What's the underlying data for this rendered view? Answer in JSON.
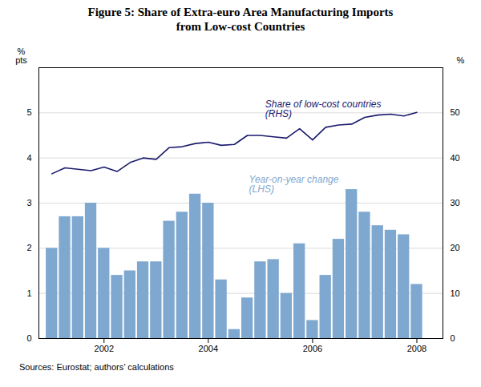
{
  "chart_data": {
    "type": "combo",
    "title": "Figure 5: Share of Extra-euro Area Manufacturing Imports\nfrom Low-cost Countries",
    "caption": "Sources:  Eurostat; authors’ calculations",
    "ylabel": "%\npts",
    "y2label": "%",
    "x": [
      2001.0,
      2001.25,
      2001.5,
      2001.75,
      2002.0,
      2002.25,
      2002.5,
      2002.75,
      2003.0,
      2003.25,
      2003.5,
      2003.75,
      2004.0,
      2004.25,
      2004.5,
      2004.75,
      2005.0,
      2005.25,
      2005.5,
      2005.75,
      2006.0,
      2006.25,
      2006.5,
      2006.75,
      2007.0,
      2007.25,
      2007.5,
      2007.75,
      2008.0
    ],
    "series": [
      {
        "name": "Year-on-year change\n(LHS)",
        "type": "bar",
        "color": "#7fa8d0",
        "values": [
          2.0,
          2.7,
          2.7,
          3.0,
          2.0,
          1.4,
          1.5,
          1.7,
          1.7,
          2.6,
          2.8,
          3.2,
          3.0,
          1.3,
          0.2,
          0.9,
          1.7,
          1.75,
          1.0,
          2.1,
          0.4,
          1.4,
          2.2,
          3.3,
          2.8,
          2.5,
          2.4,
          2.3,
          1.2
        ]
      },
      {
        "name": "Share of low-cost countries\n(RHS)",
        "type": "line",
        "axis": "y2",
        "color": "#1a1a6e",
        "values": [
          36.5,
          37.8,
          37.5,
          37.2,
          38.0,
          37.0,
          39.0,
          40.0,
          39.7,
          42.3,
          42.5,
          43.2,
          43.5,
          42.8,
          43.0,
          45.0,
          45.0,
          44.7,
          44.4,
          46.5,
          44.0,
          46.8,
          47.3,
          47.5,
          49.0,
          49.5,
          49.7,
          49.3,
          50.1
        ]
      }
    ],
    "xlim": [
      2000.75,
      2008.5
    ],
    "xticks": [
      2002,
      2004,
      2006,
      2008
    ],
    "ylim": [
      0,
      6
    ],
    "yticks": [
      0,
      1,
      2,
      3,
      4,
      5
    ],
    "y2lim": [
      0,
      60
    ],
    "y2ticks": [
      0,
      10,
      20,
      30,
      40,
      50
    ],
    "grid": true
  }
}
